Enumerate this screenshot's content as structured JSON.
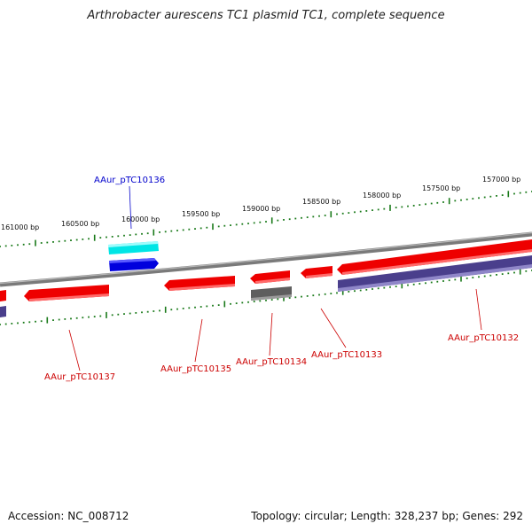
{
  "title": "Arthrobacter aurescens TC1 plasmid TC1, complete sequence",
  "footer": {
    "accession": "Accession: NC_008712",
    "summary": "Topology: circular; Length: 328,237 bp; Genes: 292"
  },
  "colors": {
    "forward_gene": "#ee0000",
    "reverse_gene": "#4a3f8c",
    "gray_gene": "#5e5e5e",
    "cyan_gene": "#00e5e5",
    "blue_gene": "#0000dd",
    "backbone": "#808080",
    "ticks": "#1a7a1a",
    "label_red": "#cc0000",
    "label_blue": "#0000cc"
  },
  "bp_labels": [
    "161000 bp",
    "160500 bp",
    "160000 bp",
    "159500 bp",
    "159000 bp",
    "158500 bp",
    "158000 bp",
    "157500 bp",
    "157000 bp"
  ],
  "gene_labels": [
    {
      "text": "AAur_pTC10136",
      "color": "blue"
    },
    {
      "text": "AAur_pTC10137",
      "color": "red"
    },
    {
      "text": "AAur_pTC10135",
      "color": "red"
    },
    {
      "text": "AAur_pTC10134",
      "color": "red"
    },
    {
      "text": "AAur_pTC10133",
      "color": "red"
    },
    {
      "text": "AAur_pTC10132",
      "color": "red"
    }
  ]
}
